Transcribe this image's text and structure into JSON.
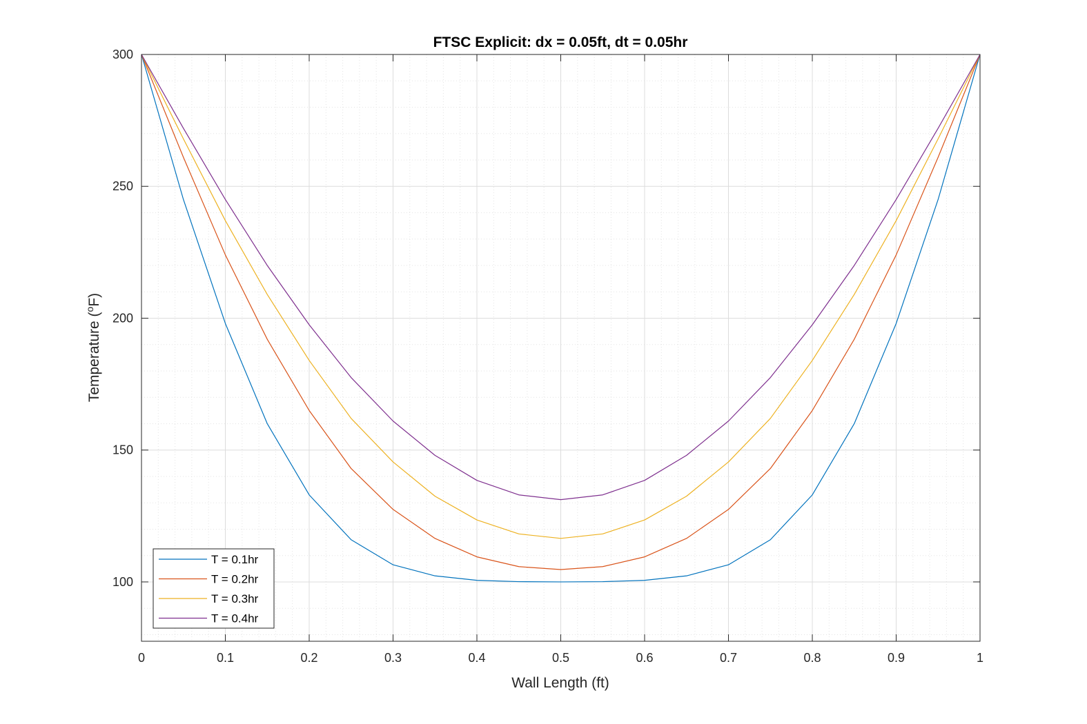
{
  "chart_data": {
    "type": "line",
    "title": "FTSC Explicit: dx = 0.05ft, dt = 0.05hr",
    "xlabel": "Wall Length (ft)",
    "ylabel_main": "Temperature (",
    "ylabel_sup": "o",
    "ylabel_tail": "F)",
    "xlim": [
      0,
      1
    ],
    "ylim": [
      77.5,
      300
    ],
    "xticks": [
      "0",
      "0.1",
      "0.2",
      "0.3",
      "0.4",
      "0.5",
      "0.6",
      "0.7",
      "0.8",
      "0.9",
      "1"
    ],
    "yticks": [
      "100",
      "150",
      "200",
      "250",
      "300"
    ],
    "grid": true,
    "minor_grid": true,
    "legend_location": "bottom-left",
    "x": [
      0,
      0.05,
      0.1,
      0.15,
      0.2,
      0.25,
      0.3,
      0.35,
      0.4,
      0.45,
      0.5,
      0.55,
      0.6,
      0.65,
      0.7,
      0.75,
      0.8,
      0.85,
      0.9,
      0.95,
      1
    ],
    "series": [
      {
        "name": "T = 0.1hr",
        "color": "#0072BD",
        "values": [
          300,
          245,
          198,
          160,
          133,
          116,
          106.5,
          102.3,
          100.6,
          100.1,
          100,
          100.1,
          100.6,
          102.3,
          106.5,
          116,
          133,
          160,
          198,
          245,
          300
        ]
      },
      {
        "name": "T = 0.2hr",
        "color": "#D95319",
        "values": [
          300,
          261,
          224,
          192,
          165,
          143,
          127.5,
          116.5,
          109.5,
          105.8,
          104.7,
          105.8,
          109.5,
          116.5,
          127.5,
          143,
          165,
          192,
          224,
          261,
          300
        ]
      },
      {
        "name": "T = 0.3hr",
        "color": "#EDB120",
        "values": [
          300,
          268,
          237,
          209,
          184,
          162,
          145.5,
          132.5,
          123.5,
          118.2,
          116.5,
          118.2,
          123.5,
          132.5,
          145.5,
          162,
          184,
          209,
          237,
          268,
          300
        ]
      },
      {
        "name": "T = 0.4hr",
        "color": "#7E2F8E",
        "values": [
          300,
          272,
          245,
          220,
          197.5,
          177.5,
          161,
          148,
          138.5,
          133,
          131.2,
          133,
          138.5,
          148,
          161,
          177.5,
          197.5,
          220,
          245,
          272,
          300
        ]
      }
    ]
  }
}
